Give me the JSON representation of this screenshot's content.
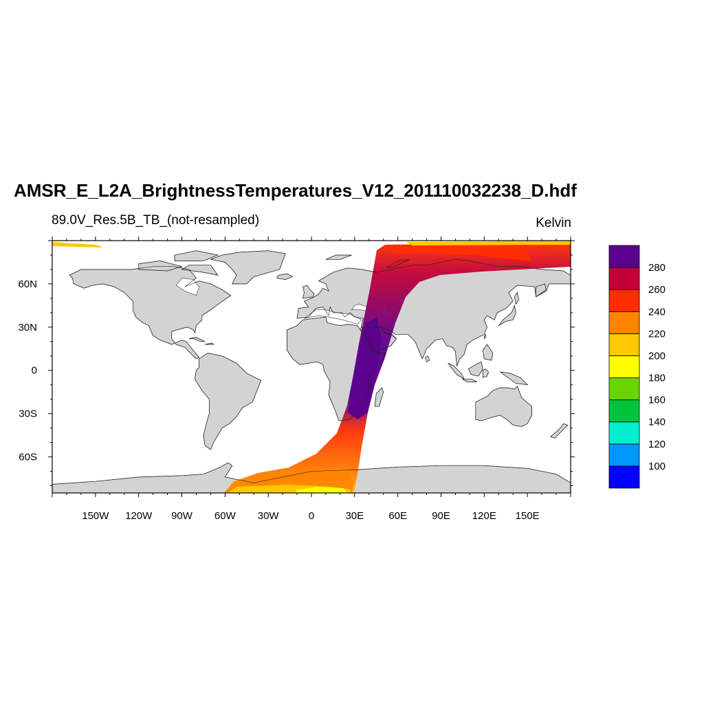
{
  "header": {
    "title": "AMSR_E_L2A_BrightnessTemperatures_V12_201110032238_D.hdf",
    "subtitle": "89.0V_Res.5B_TB_(not-resampled)",
    "units": "Kelvin"
  },
  "map": {
    "projection": "cylindrical-equidistant",
    "land_color": "#d3d3d3",
    "ocean_color": "#ffffff",
    "lon_range": [
      -180,
      180
    ],
    "lat_range": [
      -85,
      90
    ],
    "lon_ticks": [
      {
        "value": -150,
        "label": "150W"
      },
      {
        "value": -120,
        "label": "120W"
      },
      {
        "value": -90,
        "label": "90W"
      },
      {
        "value": -60,
        "label": "60W"
      },
      {
        "value": -30,
        "label": "30W"
      },
      {
        "value": 0,
        "label": "0"
      },
      {
        "value": 30,
        "label": "30E"
      },
      {
        "value": 60,
        "label": "60E"
      },
      {
        "value": 90,
        "label": "90E"
      },
      {
        "value": 120,
        "label": "120E"
      },
      {
        "value": 150,
        "label": "150E"
      }
    ],
    "lat_ticks": [
      {
        "value": 60,
        "label": "60N"
      },
      {
        "value": 30,
        "label": "30N"
      },
      {
        "value": 0,
        "label": "0"
      },
      {
        "value": -30,
        "label": "30S"
      },
      {
        "value": -60,
        "label": "60S"
      }
    ]
  },
  "colorbar": {
    "bins": [
      {
        "color": "#0000ff"
      },
      {
        "color": "#0096ff"
      },
      {
        "color": "#00efce"
      },
      {
        "color": "#00c43c"
      },
      {
        "color": "#6ad400"
      },
      {
        "color": "#ffff00"
      },
      {
        "color": "#ffc800"
      },
      {
        "color": "#ff8400"
      },
      {
        "color": "#ff2e00"
      },
      {
        "color": "#c30036"
      },
      {
        "color": "#5c008e"
      }
    ],
    "labels": [
      "100",
      "120",
      "140",
      "160",
      "180",
      "200",
      "220",
      "240",
      "260",
      "280"
    ]
  }
}
